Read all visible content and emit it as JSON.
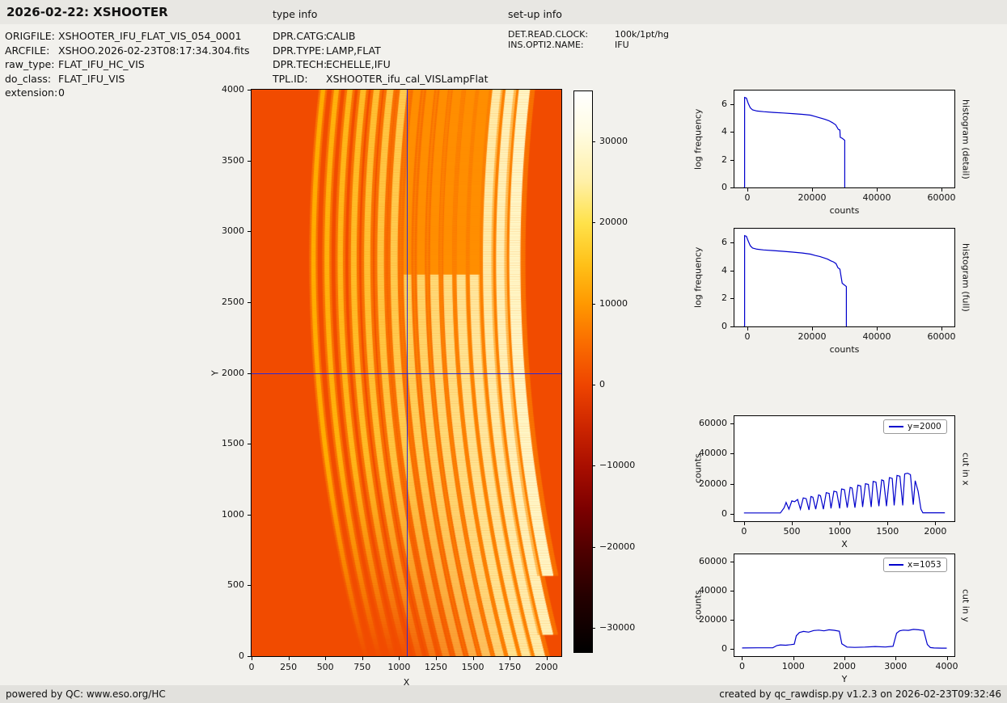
{
  "header": {
    "title": "2026-02-22: XSHOOTER",
    "type_info_label": "type info",
    "setup_info_label": "set-up info"
  },
  "file_info": {
    "rows": [
      {
        "label": "ORIGFILE:",
        "value": "XSHOOTER_IFU_FLAT_VIS_054_0001"
      },
      {
        "label": "ARCFILE:",
        "value": "XSHOO.2026-02-23T08:17:34.304.fits"
      },
      {
        "label": "raw_type:",
        "value": "FLAT_IFU_HC_VIS"
      },
      {
        "label": "do_class:",
        "value": "FLAT_IFU_VIS"
      },
      {
        "label": "extension:",
        "value": "0"
      }
    ]
  },
  "type_info": {
    "rows": [
      {
        "label": "DPR.CATG:",
        "value": "CALIB"
      },
      {
        "label": "DPR.TYPE:",
        "value": "LAMP,FLAT"
      },
      {
        "label": "DPR.TECH:",
        "value": "ECHELLE,IFU"
      },
      {
        "label": "TPL.ID:",
        "value": "XSHOOTER_ifu_cal_VISLampFlat"
      }
    ]
  },
  "setup_info": {
    "rows": [
      {
        "label": "DET.READ.CLOCK:",
        "value": "100k/1pt/hg"
      },
      {
        "label": "INS.OPTI2.NAME:",
        "value": "IFU"
      }
    ]
  },
  "footer": {
    "left": "powered by QC: www.eso.org/HC",
    "right": "created by qc_rawdisp.py v1.2.3 on 2026-02-23T09:32:46"
  },
  "chart_data": [
    {
      "id": "raw_image",
      "type": "heatmap",
      "xlabel": "X",
      "ylabel": "Y",
      "xlim": [
        0,
        2100
      ],
      "ylim": [
        0,
        4000
      ],
      "xticks": [
        0,
        250,
        500,
        750,
        1000,
        1250,
        1500,
        1750,
        2000
      ],
      "yticks": [
        0,
        500,
        1000,
        1500,
        2000,
        2500,
        3000,
        3500,
        4000
      ],
      "crosshair": {
        "x": 1053,
        "y": 2000,
        "color": "#2b2bd6"
      },
      "image": {
        "description": "Raw XSHOOTER VIS IFU lamp-flat echelle frame: ~15 bright curved spectral orders on an orange background; orders bow left, get brighter and wider toward the right, fade toward the lower-left corner",
        "background_color": "#f14b00",
        "order_halo_color": "#ff8f00",
        "order_color_faint": "#ffae00",
        "order_color_bright": "#fff7c8",
        "order_highlight_color": "#fffdf0",
        "order_count": 16,
        "first_order_apex_x": 420,
        "order_spacing_x": 91,
        "apex_y": 2800,
        "curvature": 180,
        "x_clip": 2010
      },
      "colorbar": {
        "vmin": -33000,
        "vmax": 36200,
        "ticks": [
          30000,
          20000,
          10000,
          0,
          -10000,
          -20000,
          -30000
        ],
        "gradient_stops": [
          {
            "pos": 0.0,
            "color": "#ffffff"
          },
          {
            "pos": 0.07,
            "color": "#fffce4"
          },
          {
            "pos": 0.16,
            "color": "#fff0a8"
          },
          {
            "pos": 0.235,
            "color": "#ffe24a"
          },
          {
            "pos": 0.31,
            "color": "#ffc018"
          },
          {
            "pos": 0.38,
            "color": "#ff9800"
          },
          {
            "pos": 0.45,
            "color": "#fa6c00"
          },
          {
            "pos": 0.525,
            "color": "#ee4400"
          },
          {
            "pos": 0.6,
            "color": "#cc2500"
          },
          {
            "pos": 0.67,
            "color": "#a80e00"
          },
          {
            "pos": 0.745,
            "color": "#7c0000"
          },
          {
            "pos": 0.82,
            "color": "#4e0000"
          },
          {
            "pos": 0.9,
            "color": "#250000"
          },
          {
            "pos": 1.0,
            "color": "#000000"
          }
        ]
      }
    },
    {
      "id": "hist_detail",
      "type": "line",
      "xlabel": "counts",
      "ylabel": "log frequency",
      "right_label": "histogram (detail)",
      "xlim": [
        -4000,
        64000
      ],
      "ylim": [
        0,
        7
      ],
      "xticks": [
        0,
        20000,
        40000,
        60000
      ],
      "yticks": [
        0,
        2,
        4,
        6
      ],
      "line_color": "#0000cc",
      "series": [
        {
          "name": "histogram (detail)",
          "x": [
            -1100,
            -850,
            -850,
            -300,
            300,
            900,
            1600,
            3000,
            5000,
            8000,
            11000,
            14000,
            17000,
            19500,
            21000,
            22500,
            24000,
            25200,
            26300,
            27300,
            28100,
            28600,
            28700,
            29300,
            29900,
            30100,
            30100
          ],
          "y": [
            0,
            0,
            6.5,
            6.45,
            6.05,
            5.75,
            5.6,
            5.52,
            5.47,
            5.42,
            5.38,
            5.33,
            5.28,
            5.22,
            5.12,
            5.02,
            4.92,
            4.82,
            4.68,
            4.52,
            4.2,
            4.15,
            3.62,
            3.55,
            3.45,
            3.4,
            0
          ]
        }
      ]
    },
    {
      "id": "hist_full",
      "type": "line",
      "xlabel": "counts",
      "ylabel": "log frequency",
      "right_label": "histogram (full)",
      "xlim": [
        -4000,
        64000
      ],
      "ylim": [
        0,
        7
      ],
      "xticks": [
        0,
        20000,
        40000,
        60000
      ],
      "yticks": [
        0,
        2,
        4,
        6
      ],
      "line_color": "#0000cc",
      "series": [
        {
          "name": "histogram (full)",
          "x": [
            -1100,
            -850,
            -850,
            -300,
            300,
            900,
            1600,
            3000,
            5000,
            8000,
            11000,
            14000,
            17000,
            19500,
            21000,
            22500,
            23800,
            24800,
            25800,
            26600,
            27400,
            28000,
            28600,
            29300,
            29800,
            30400,
            30600,
            30600
          ],
          "y": [
            0,
            0,
            6.5,
            6.45,
            6.1,
            5.78,
            5.62,
            5.53,
            5.48,
            5.43,
            5.38,
            5.32,
            5.26,
            5.18,
            5.08,
            5.0,
            4.9,
            4.82,
            4.7,
            4.62,
            4.5,
            4.2,
            4.1,
            3.1,
            3.0,
            2.9,
            2.85,
            0
          ]
        }
      ]
    },
    {
      "id": "cut_x",
      "type": "line",
      "xlabel": "X",
      "ylabel": "counts",
      "right_label": "cut in x",
      "legend": {
        "label": "y=2000"
      },
      "xlim": [
        -100,
        2200
      ],
      "ylim": [
        -5000,
        65000
      ],
      "xticks": [
        0,
        500,
        1000,
        1500,
        2000
      ],
      "yticks": [
        0,
        20000,
        40000,
        60000
      ],
      "line_color": "#0000cc",
      "series": [
        {
          "name": "y=2000",
          "x": [
            0,
            380,
            420,
            440,
            470,
            500,
            530,
            560,
            590,
            620,
            650,
            680,
            700,
            720,
            750,
            780,
            800,
            830,
            860,
            890,
            910,
            940,
            970,
            1000,
            1020,
            1050,
            1080,
            1110,
            1130,
            1160,
            1190,
            1220,
            1240,
            1270,
            1300,
            1330,
            1350,
            1380,
            1410,
            1440,
            1460,
            1490,
            1520,
            1550,
            1570,
            1600,
            1630,
            1660,
            1680,
            1710,
            1740,
            1770,
            1790,
            1820,
            1850,
            1870,
            2100
          ],
          "y": [
            500,
            500,
            4000,
            7500,
            3000,
            8500,
            8000,
            9500,
            3000,
            10500,
            10000,
            2500,
            11500,
            11000,
            3000,
            12500,
            12000,
            3000,
            14000,
            13500,
            3500,
            15000,
            14500,
            3500,
            16500,
            16000,
            4000,
            17500,
            17000,
            4000,
            19000,
            18500,
            4500,
            20000,
            19500,
            4500,
            21500,
            21000,
            5000,
            22500,
            22000,
            5000,
            24000,
            23500,
            5500,
            25500,
            25000,
            5500,
            26500,
            27000,
            26000,
            6000,
            22000,
            15000,
            3000,
            600,
            600
          ]
        }
      ]
    },
    {
      "id": "cut_y",
      "type": "line",
      "xlabel": "Y",
      "ylabel": "counts",
      "right_label": "cut in y",
      "legend": {
        "label": "x=1053"
      },
      "xlim": [
        -150,
        4150
      ],
      "ylim": [
        -5000,
        65000
      ],
      "xticks": [
        0,
        1000,
        2000,
        3000,
        4000
      ],
      "yticks": [
        0,
        20000,
        40000,
        60000
      ],
      "line_color": "#0000cc",
      "series": [
        {
          "name": "x=1053",
          "x": [
            0,
            300,
            600,
            680,
            750,
            850,
            950,
            1020,
            1060,
            1120,
            1200,
            1300,
            1400,
            1500,
            1600,
            1700,
            1800,
            1900,
            1950,
            2050,
            2200,
            2400,
            2600,
            2800,
            2950,
            3020,
            3080,
            3150,
            3250,
            3350,
            3450,
            3550,
            3620,
            3680,
            3750,
            3900,
            4000
          ],
          "y": [
            600,
            700,
            800,
            2300,
            2700,
            2500,
            2900,
            3200,
            9000,
            11200,
            12000,
            11500,
            12600,
            12900,
            12400,
            13100,
            12800,
            12100,
            3500,
            1200,
            1000,
            1200,
            1600,
            1300,
            1800,
            10800,
            12400,
            12900,
            12700,
            13400,
            13100,
            12600,
            3000,
            900,
            600,
            500,
            500
          ]
        }
      ]
    }
  ]
}
